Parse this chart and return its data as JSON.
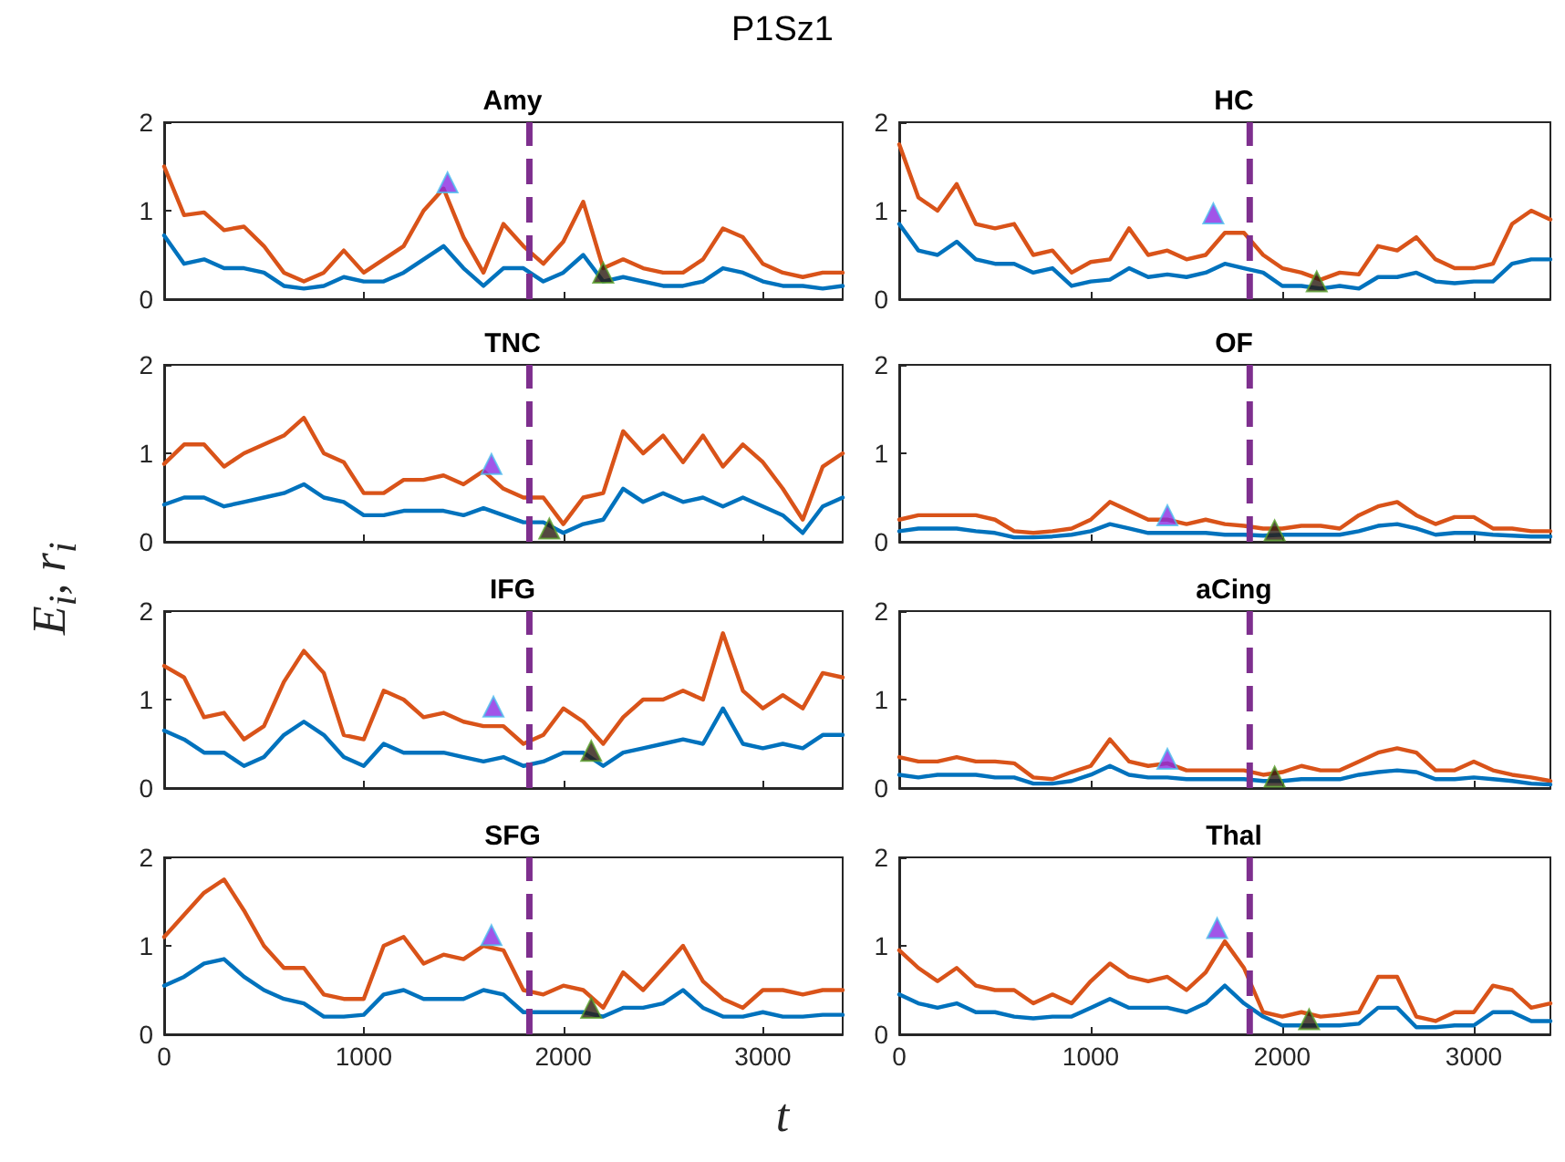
{
  "chart_data": [
    {
      "type": "line",
      "title": "Amy",
      "annotations": [
        "P1Sz1"
      ],
      "ylabel": "E$_{i}$, r$_{i}$",
      "xlim": [
        0,
        3400
      ],
      "xticks": [
        0,
        1000,
        2000,
        3000
      ],
      "ylim": [
        0,
        2
      ],
      "yticks": [
        0,
        1,
        2
      ],
      "tick_labels": "y",
      "grid": false,
      "marker": "none",
      "line_style": "solid",
      "x": [
        0,
        100,
        200,
        300,
        400,
        500,
        600,
        700,
        800,
        900,
        1000,
        1100,
        1200,
        1300,
        1400,
        1500,
        1600,
        1700,
        1800,
        1900,
        2000,
        2100,
        2200,
        2300,
        2400,
        2500,
        2600,
        2700,
        2800,
        2900,
        3000,
        3100,
        3200,
        3300,
        3400
      ],
      "ref_lines": [
        {
          "axis": "x",
          "value": 1830,
          "color": "#7e2f8e",
          "line_style": "dashed"
        }
      ],
      "series": [
        {
          "type": "line",
          "color": "#d95319",
          "values": [
            1.5,
            0.95,
            0.98,
            0.78,
            0.82,
            0.6,
            0.3,
            0.2,
            0.3,
            0.55,
            0.3,
            0.45,
            0.6,
            1.0,
            1.25,
            0.7,
            0.3,
            0.85,
            0.6,
            0.4,
            0.65,
            1.1,
            0.35,
            0.45,
            0.35,
            0.3,
            0.3,
            0.45,
            0.8,
            0.7,
            0.4,
            0.3,
            0.25,
            0.3,
            0.3
          ]
        },
        {
          "type": "line",
          "color": "#0072bd",
          "values": [
            0.72,
            0.4,
            0.45,
            0.35,
            0.35,
            0.3,
            0.15,
            0.12,
            0.15,
            0.25,
            0.2,
            0.2,
            0.3,
            0.45,
            0.6,
            0.35,
            0.15,
            0.35,
            0.35,
            0.2,
            0.3,
            0.5,
            0.2,
            0.25,
            0.2,
            0.15,
            0.15,
            0.2,
            0.35,
            0.3,
            0.2,
            0.15,
            0.15,
            0.12,
            0.15
          ]
        },
        {
          "type": "scatter",
          "marker": "triangle",
          "color": "#8a2be2",
          "x": [
            1420
          ],
          "values": [
            1.32
          ]
        },
        {
          "type": "scatter",
          "marker": "triangle",
          "color": "#2b1a10",
          "x": [
            2200
          ],
          "values": [
            0.3
          ]
        }
      ]
    },
    {
      "type": "line",
      "title": "HC",
      "xlim": [
        0,
        3400
      ],
      "xticks": [
        0,
        1000,
        2000,
        3000
      ],
      "ylim": [
        0,
        2
      ],
      "yticks": [
        0,
        1,
        2
      ],
      "tick_labels": "y",
      "grid": false,
      "marker": "none",
      "line_style": "solid",
      "x": [
        0,
        100,
        200,
        300,
        400,
        500,
        600,
        700,
        800,
        900,
        1000,
        1100,
        1200,
        1300,
        1400,
        1500,
        1600,
        1700,
        1800,
        1900,
        2000,
        2100,
        2200,
        2300,
        2400,
        2500,
        2600,
        2700,
        2800,
        2900,
        3000,
        3100,
        3200,
        3300,
        3400
      ],
      "ref_lines": [
        {
          "axis": "x",
          "value": 1830,
          "color": "#7e2f8e",
          "line_style": "dashed"
        }
      ],
      "series": [
        {
          "type": "line",
          "color": "#d95319",
          "values": [
            1.75,
            1.15,
            1.0,
            1.3,
            0.85,
            0.8,
            0.85,
            0.5,
            0.55,
            0.3,
            0.42,
            0.45,
            0.8,
            0.5,
            0.55,
            0.45,
            0.5,
            0.75,
            0.75,
            0.5,
            0.35,
            0.3,
            0.22,
            0.3,
            0.28,
            0.6,
            0.55,
            0.7,
            0.45,
            0.35,
            0.35,
            0.4,
            0.85,
            1.0,
            0.9
          ]
        },
        {
          "type": "line",
          "color": "#0072bd",
          "values": [
            0.85,
            0.55,
            0.5,
            0.65,
            0.45,
            0.4,
            0.4,
            0.3,
            0.35,
            0.15,
            0.2,
            0.22,
            0.35,
            0.25,
            0.28,
            0.25,
            0.3,
            0.4,
            0.35,
            0.3,
            0.15,
            0.15,
            0.12,
            0.15,
            0.12,
            0.25,
            0.25,
            0.3,
            0.2,
            0.18,
            0.2,
            0.2,
            0.4,
            0.45,
            0.45
          ]
        },
        {
          "type": "scatter",
          "marker": "triangle",
          "color": "#8a2be2",
          "x": [
            1640
          ],
          "values": [
            0.97
          ]
        },
        {
          "type": "scatter",
          "marker": "triangle",
          "color": "#2b1a10",
          "x": [
            2180
          ],
          "values": [
            0.2
          ]
        }
      ]
    },
    {
      "type": "line",
      "title": "TNC",
      "xlim": [
        0,
        3400
      ],
      "xticks": [
        0,
        1000,
        2000,
        3000
      ],
      "ylim": [
        0,
        2
      ],
      "yticks": [
        0,
        1,
        2
      ],
      "tick_labels": "y",
      "grid": false,
      "marker": "none",
      "line_style": "solid",
      "x": [
        0,
        100,
        200,
        300,
        400,
        500,
        600,
        700,
        800,
        900,
        1000,
        1100,
        1200,
        1300,
        1400,
        1500,
        1600,
        1700,
        1800,
        1900,
        2000,
        2100,
        2200,
        2300,
        2400,
        2500,
        2600,
        2700,
        2800,
        2900,
        3000,
        3100,
        3200,
        3300,
        3400
      ],
      "ref_lines": [
        {
          "axis": "x",
          "value": 1830,
          "color": "#7e2f8e",
          "line_style": "dashed"
        }
      ],
      "series": [
        {
          "type": "line",
          "color": "#d95319",
          "values": [
            0.88,
            1.1,
            1.1,
            0.85,
            1.0,
            1.1,
            1.2,
            1.4,
            1.0,
            0.9,
            0.55,
            0.55,
            0.7,
            0.7,
            0.75,
            0.65,
            0.8,
            0.6,
            0.5,
            0.5,
            0.2,
            0.5,
            0.55,
            1.25,
            1.0,
            1.2,
            0.9,
            1.2,
            0.85,
            1.1,
            0.9,
            0.6,
            0.25,
            0.85,
            1.0
          ]
        },
        {
          "type": "line",
          "color": "#0072bd",
          "values": [
            0.42,
            0.5,
            0.5,
            0.4,
            0.45,
            0.5,
            0.55,
            0.65,
            0.5,
            0.45,
            0.3,
            0.3,
            0.35,
            0.35,
            0.35,
            0.3,
            0.38,
            0.3,
            0.22,
            0.22,
            0.1,
            0.2,
            0.25,
            0.6,
            0.45,
            0.55,
            0.45,
            0.5,
            0.4,
            0.5,
            0.4,
            0.3,
            0.1,
            0.4,
            0.5
          ]
        },
        {
          "type": "scatter",
          "marker": "triangle",
          "color": "#8a2be2",
          "x": [
            1640
          ],
          "values": [
            0.88
          ]
        },
        {
          "type": "scatter",
          "marker": "triangle",
          "color": "#2b1a10",
          "x": [
            1930
          ],
          "values": [
            0.15
          ]
        }
      ]
    },
    {
      "type": "line",
      "title": "OF",
      "xlim": [
        0,
        3400
      ],
      "xticks": [
        0,
        1000,
        2000,
        3000
      ],
      "ylim": [
        0,
        2
      ],
      "yticks": [
        0,
        1,
        2
      ],
      "tick_labels": "y",
      "grid": false,
      "marker": "none",
      "line_style": "solid",
      "x": [
        0,
        100,
        200,
        300,
        400,
        500,
        600,
        700,
        800,
        900,
        1000,
        1100,
        1200,
        1300,
        1400,
        1500,
        1600,
        1700,
        1800,
        1900,
        2000,
        2100,
        2200,
        2300,
        2400,
        2500,
        2600,
        2700,
        2800,
        2900,
        3000,
        3100,
        3200,
        3300,
        3400
      ],
      "ref_lines": [
        {
          "axis": "x",
          "value": 1830,
          "color": "#7e2f8e",
          "line_style": "dashed"
        }
      ],
      "series": [
        {
          "type": "line",
          "color": "#d95319",
          "values": [
            0.25,
            0.3,
            0.3,
            0.3,
            0.3,
            0.25,
            0.12,
            0.1,
            0.12,
            0.15,
            0.25,
            0.45,
            0.35,
            0.25,
            0.25,
            0.2,
            0.25,
            0.2,
            0.18,
            0.15,
            0.15,
            0.18,
            0.18,
            0.15,
            0.3,
            0.4,
            0.45,
            0.3,
            0.2,
            0.28,
            0.28,
            0.15,
            0.15,
            0.12,
            0.12
          ]
        },
        {
          "type": "line",
          "color": "#0072bd",
          "values": [
            0.12,
            0.15,
            0.15,
            0.15,
            0.12,
            0.1,
            0.05,
            0.05,
            0.06,
            0.08,
            0.12,
            0.2,
            0.15,
            0.1,
            0.1,
            0.1,
            0.1,
            0.08,
            0.08,
            0.07,
            0.08,
            0.08,
            0.08,
            0.08,
            0.12,
            0.18,
            0.2,
            0.15,
            0.08,
            0.1,
            0.1,
            0.08,
            0.07,
            0.06,
            0.06
          ]
        },
        {
          "type": "scatter",
          "marker": "triangle",
          "color": "#8a2be2",
          "x": [
            1400
          ],
          "values": [
            0.3
          ]
        },
        {
          "type": "scatter",
          "marker": "triangle",
          "color": "#2b1a10",
          "x": [
            1960
          ],
          "values": [
            0.13
          ]
        }
      ]
    },
    {
      "type": "line",
      "title": "IFG",
      "xlim": [
        0,
        3400
      ],
      "xticks": [
        0,
        1000,
        2000,
        3000
      ],
      "ylim": [
        0,
        2
      ],
      "yticks": [
        0,
        1,
        2
      ],
      "tick_labels": "y",
      "grid": false,
      "marker": "none",
      "line_style": "solid",
      "x": [
        0,
        100,
        200,
        300,
        400,
        500,
        600,
        700,
        800,
        900,
        1000,
        1100,
        1200,
        1300,
        1400,
        1500,
        1600,
        1700,
        1800,
        1900,
        2000,
        2100,
        2200,
        2300,
        2400,
        2500,
        2600,
        2700,
        2800,
        2900,
        3000,
        3100,
        3200,
        3300,
        3400
      ],
      "ref_lines": [
        {
          "axis": "x",
          "value": 1830,
          "color": "#7e2f8e",
          "line_style": "dashed"
        }
      ],
      "series": [
        {
          "type": "line",
          "color": "#d95319",
          "values": [
            1.38,
            1.25,
            0.8,
            0.85,
            0.55,
            0.7,
            1.2,
            1.55,
            1.3,
            0.6,
            0.55,
            1.1,
            1.0,
            0.8,
            0.85,
            0.75,
            0.7,
            0.7,
            0.5,
            0.6,
            0.9,
            0.75,
            0.5,
            0.8,
            1.0,
            1.0,
            1.1,
            1.0,
            1.75,
            1.1,
            0.9,
            1.05,
            0.9,
            1.3,
            1.25
          ]
        },
        {
          "type": "line",
          "color": "#0072bd",
          "values": [
            0.65,
            0.55,
            0.4,
            0.4,
            0.25,
            0.35,
            0.6,
            0.75,
            0.6,
            0.35,
            0.25,
            0.5,
            0.4,
            0.4,
            0.4,
            0.35,
            0.3,
            0.35,
            0.25,
            0.3,
            0.4,
            0.4,
            0.25,
            0.4,
            0.45,
            0.5,
            0.55,
            0.5,
            0.9,
            0.5,
            0.45,
            0.5,
            0.45,
            0.6,
            0.6
          ]
        },
        {
          "type": "scatter",
          "marker": "triangle",
          "color": "#8a2be2",
          "x": [
            1650
          ],
          "values": [
            0.92
          ]
        },
        {
          "type": "scatter",
          "marker": "triangle",
          "color": "#2b1a10",
          "x": [
            2140
          ],
          "values": [
            0.42
          ]
        }
      ]
    },
    {
      "type": "line",
      "title": "aCing",
      "xlim": [
        0,
        3400
      ],
      "xticks": [
        0,
        1000,
        2000,
        3000
      ],
      "ylim": [
        0,
        2
      ],
      "yticks": [
        0,
        1,
        2
      ],
      "tick_labels": "y",
      "grid": false,
      "marker": "none",
      "line_style": "solid",
      "x": [
        0,
        100,
        200,
        300,
        400,
        500,
        600,
        700,
        800,
        900,
        1000,
        1100,
        1200,
        1300,
        1400,
        1500,
        1600,
        1700,
        1800,
        1900,
        2000,
        2100,
        2200,
        2300,
        2400,
        2500,
        2600,
        2700,
        2800,
        2900,
        3000,
        3100,
        3200,
        3300,
        3400
      ],
      "ref_lines": [
        {
          "axis": "x",
          "value": 1830,
          "color": "#7e2f8e",
          "line_style": "dashed"
        }
      ],
      "series": [
        {
          "type": "line",
          "color": "#d95319",
          "values": [
            0.35,
            0.3,
            0.3,
            0.35,
            0.3,
            0.3,
            0.28,
            0.12,
            0.1,
            0.18,
            0.25,
            0.55,
            0.3,
            0.25,
            0.28,
            0.2,
            0.2,
            0.2,
            0.2,
            0.15,
            0.18,
            0.25,
            0.2,
            0.2,
            0.3,
            0.4,
            0.45,
            0.4,
            0.2,
            0.2,
            0.3,
            0.2,
            0.15,
            0.12,
            0.08
          ]
        },
        {
          "type": "line",
          "color": "#0072bd",
          "values": [
            0.15,
            0.12,
            0.15,
            0.15,
            0.15,
            0.12,
            0.12,
            0.05,
            0.05,
            0.08,
            0.15,
            0.25,
            0.15,
            0.12,
            0.12,
            0.1,
            0.1,
            0.1,
            0.1,
            0.08,
            0.08,
            0.1,
            0.1,
            0.1,
            0.15,
            0.18,
            0.2,
            0.18,
            0.1,
            0.1,
            0.12,
            0.1,
            0.08,
            0.05,
            0.04
          ]
        },
        {
          "type": "scatter",
          "marker": "triangle",
          "color": "#8a2be2",
          "x": [
            1400
          ],
          "values": [
            0.33
          ]
        },
        {
          "type": "scatter",
          "marker": "triangle",
          "color": "#2b1a10",
          "x": [
            1960
          ],
          "values": [
            0.13
          ]
        }
      ]
    },
    {
      "type": "line",
      "title": "SFG",
      "xlabel": "t",
      "xlim": [
        0,
        3400
      ],
      "xticks": [
        0,
        1000,
        2000,
        3000
      ],
      "ylim": [
        0,
        2
      ],
      "yticks": [
        0,
        1,
        2
      ],
      "grid": false,
      "marker": "none",
      "line_style": "solid",
      "x": [
        0,
        100,
        200,
        300,
        400,
        500,
        600,
        700,
        800,
        900,
        1000,
        1100,
        1200,
        1300,
        1400,
        1500,
        1600,
        1700,
        1800,
        1900,
        2000,
        2100,
        2200,
        2300,
        2400,
        2500,
        2600,
        2700,
        2800,
        2900,
        3000,
        3100,
        3200,
        3300,
        3400
      ],
      "ref_lines": [
        {
          "axis": "x",
          "value": 1830,
          "color": "#7e2f8e",
          "line_style": "dashed"
        }
      ],
      "series": [
        {
          "type": "line",
          "color": "#d95319",
          "values": [
            1.1,
            1.35,
            1.6,
            1.75,
            1.4,
            1.0,
            0.75,
            0.75,
            0.45,
            0.4,
            0.4,
            1.0,
            1.1,
            0.8,
            0.9,
            0.85,
            1.0,
            0.95,
            0.5,
            0.45,
            0.55,
            0.5,
            0.3,
            0.7,
            0.5,
            0.75,
            1.0,
            0.6,
            0.4,
            0.3,
            0.5,
            0.5,
            0.45,
            0.5,
            0.5
          ]
        },
        {
          "type": "line",
          "color": "#0072bd",
          "values": [
            0.55,
            0.65,
            0.8,
            0.85,
            0.65,
            0.5,
            0.4,
            0.35,
            0.2,
            0.2,
            0.22,
            0.45,
            0.5,
            0.4,
            0.4,
            0.4,
            0.5,
            0.45,
            0.25,
            0.25,
            0.25,
            0.25,
            0.2,
            0.3,
            0.3,
            0.35,
            0.5,
            0.3,
            0.2,
            0.2,
            0.25,
            0.2,
            0.2,
            0.22,
            0.22
          ]
        },
        {
          "type": "scatter",
          "marker": "triangle",
          "color": "#8a2be2",
          "x": [
            1640
          ],
          "values": [
            1.12
          ]
        },
        {
          "type": "scatter",
          "marker": "triangle",
          "color": "#2b1a10",
          "x": [
            2140
          ],
          "values": [
            0.3
          ]
        }
      ]
    },
    {
      "type": "line",
      "title": "Thal",
      "xlim": [
        0,
        3400
      ],
      "xticks": [
        0,
        1000,
        2000,
        3000
      ],
      "ylim": [
        0,
        2
      ],
      "yticks": [
        0,
        1,
        2
      ],
      "grid": false,
      "marker": "none",
      "line_style": "solid",
      "x": [
        0,
        100,
        200,
        300,
        400,
        500,
        600,
        700,
        800,
        900,
        1000,
        1100,
        1200,
        1300,
        1400,
        1500,
        1600,
        1700,
        1800,
        1900,
        2000,
        2100,
        2200,
        2300,
        2400,
        2500,
        2600,
        2700,
        2800,
        2900,
        3000,
        3100,
        3200,
        3300,
        3400
      ],
      "ref_lines": [
        {
          "axis": "x",
          "value": 1830,
          "color": "#7e2f8e",
          "line_style": "dashed"
        }
      ],
      "series": [
        {
          "type": "line",
          "color": "#d95319",
          "values": [
            0.95,
            0.75,
            0.6,
            0.75,
            0.55,
            0.5,
            0.5,
            0.35,
            0.45,
            0.35,
            0.6,
            0.8,
            0.65,
            0.6,
            0.65,
            0.5,
            0.7,
            1.05,
            0.75,
            0.25,
            0.2,
            0.25,
            0.2,
            0.22,
            0.25,
            0.65,
            0.65,
            0.2,
            0.15,
            0.25,
            0.25,
            0.55,
            0.5,
            0.3,
            0.35
          ]
        },
        {
          "type": "line",
          "color": "#0072bd",
          "values": [
            0.45,
            0.35,
            0.3,
            0.35,
            0.25,
            0.25,
            0.2,
            0.18,
            0.2,
            0.2,
            0.3,
            0.4,
            0.3,
            0.3,
            0.3,
            0.25,
            0.35,
            0.55,
            0.35,
            0.2,
            0.1,
            0.1,
            0.1,
            0.1,
            0.12,
            0.3,
            0.3,
            0.08,
            0.08,
            0.1,
            0.1,
            0.25,
            0.25,
            0.15,
            0.15
          ]
        },
        {
          "type": "scatter",
          "marker": "triangle",
          "color": "#8a2be2",
          "x": [
            1660
          ],
          "values": [
            1.2
          ]
        },
        {
          "type": "scatter",
          "marker": "triangle",
          "color": "#2b1a10",
          "x": [
            2140
          ],
          "values": [
            0.17
          ]
        }
      ]
    }
  ]
}
